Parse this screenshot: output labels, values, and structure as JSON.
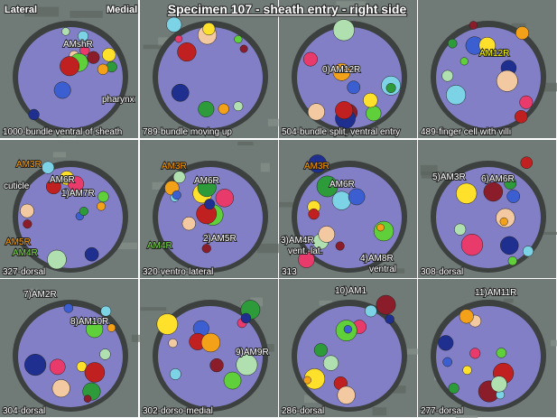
{
  "header": {
    "title": "Specimen 107 - sheath entry - right side",
    "left": "Lateral",
    "right": "Medial"
  },
  "panels": [
    {
      "caption": "1000-bundle ventral of sheath",
      "labels": [
        "AMshR",
        "pharynx"
      ]
    },
    {
      "caption": "789-bundle moving up",
      "labels": []
    },
    {
      "caption": "504-bundle split, ventral entry",
      "labels": [
        "0)AM12R"
      ]
    },
    {
      "caption": "489-finger cell with villi",
      "labels": [
        "AM12R"
      ]
    },
    {
      "caption": "327-dorsal",
      "labels": [
        "AM3R",
        "cuticle",
        "AM6R",
        "1)AM7R",
        "AM5R",
        "AM4R"
      ]
    },
    {
      "caption": "320-ventro-lateral",
      "labels": [
        "AM3R",
        "AM6R",
        "2)AM5R",
        "AM4R"
      ]
    },
    {
      "caption": "313",
      "labels": [
        "AM3R",
        "AM6R",
        "3)AM4R",
        "vent.-lat.",
        "4)AM8R",
        "ventral"
      ]
    },
    {
      "caption": "308-dorsal",
      "labels": [
        "5)AM3R",
        "6)AM6R"
      ]
    },
    {
      "caption": "304-dorsal",
      "labels": [
        "7)AM2R",
        "8)AM10R"
      ]
    },
    {
      "caption": "302-dorso-medial",
      "labels": [
        "9)AM9R"
      ]
    },
    {
      "caption": "286-dorsal",
      "labels": [
        "10)AM1"
      ]
    },
    {
      "caption": "277-dorsal",
      "labels": [
        "11)AM11R"
      ]
    }
  ]
}
